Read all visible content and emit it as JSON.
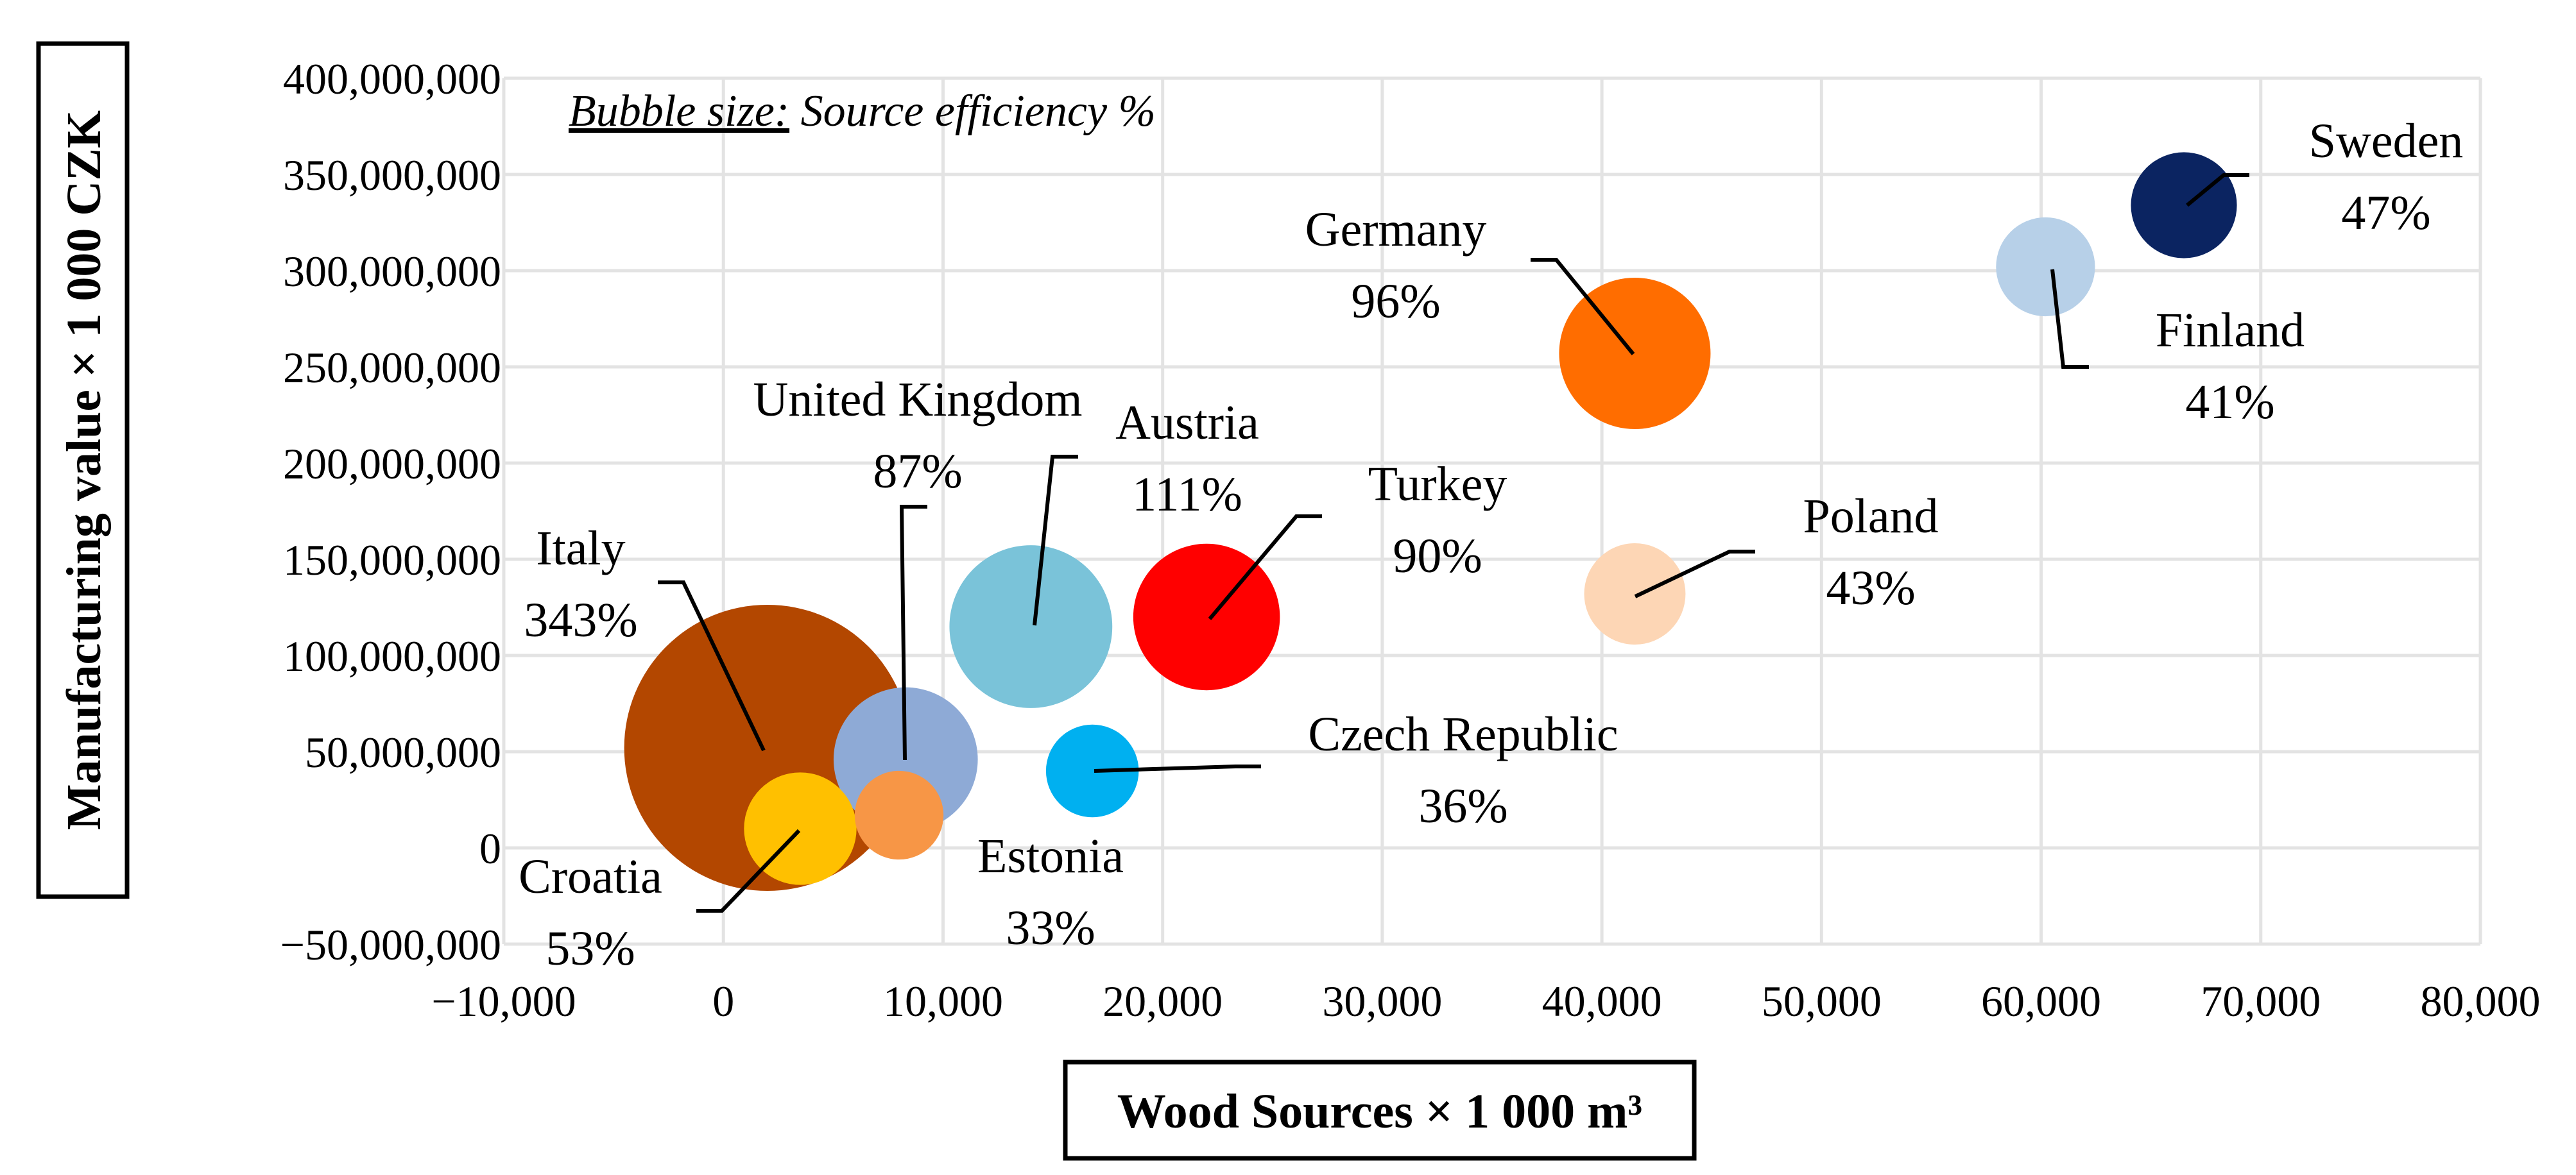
{
  "chart_data": {
    "type": "bubble",
    "title": "",
    "note_prefix": "Bubble size:",
    "note_suffix": " Source efficiency %",
    "xlabel": "Wood Sources × 1 000 m³",
    "ylabel": "Manufacturing value × 1 000 CZK",
    "xlim": [
      -10000,
      80000
    ],
    "ylim": [
      -50000000,
      400000000
    ],
    "x_ticks": [
      -10000,
      0,
      10000,
      20000,
      30000,
      40000,
      50000,
      60000,
      70000,
      80000
    ],
    "x_tick_labels": [
      "−10,000",
      "0",
      "10,000",
      "20,000",
      "30,000",
      "40,000",
      "50,000",
      "60,000",
      "70,000",
      "80,000"
    ],
    "y_ticks": [
      -50000000,
      0,
      50000000,
      100000000,
      150000000,
      200000000,
      250000000,
      300000000,
      350000000,
      400000000
    ],
    "y_tick_labels": [
      "−50,000,000",
      "0",
      "50,000,000",
      "100,000,000",
      "150,000,000",
      "200,000,000",
      "250,000,000",
      "300,000,000",
      "350,000,000",
      "400,000,000"
    ],
    "grid": true,
    "points": [
      {
        "name": "Italy",
        "x": 2000,
        "y": 52000000,
        "efficiency": 343,
        "label": "343%",
        "color": "#b34700"
      },
      {
        "name": "Unlabeled",
        "x": 8000,
        "y": 17000000,
        "efficiency": 33,
        "label": "",
        "color": "#f79646"
      },
      {
        "name": "Croatia",
        "x": 3500,
        "y": 10000000,
        "efficiency": 53,
        "label": "53%",
        "color": "#ffc000"
      },
      {
        "name": "United Kingdom",
        "x": 8300,
        "y": 46000000,
        "efficiency": 87,
        "label": "87%",
        "color": "#8eaad6"
      },
      {
        "name": "Austria",
        "x": 14000,
        "y": 115000000,
        "efficiency": 111,
        "label": "111%",
        "color": "#7ac3d9"
      },
      {
        "name": "Turkey",
        "x": 22000,
        "y": 120000000,
        "efficiency": 90,
        "label": "90%",
        "color": "#ff0000"
      },
      {
        "name": "Estonia",
        "x": 16800,
        "y": 40000000,
        "efficiency": 33,
        "label": "33%",
        "color": "#00b0f0"
      },
      {
        "name": "Germany",
        "x": 41500,
        "y": 257000000,
        "efficiency": 96,
        "label": "96%",
        "color": "#ff6d00"
      },
      {
        "name": "Poland",
        "x": 41500,
        "y": 132000000,
        "efficiency": 43,
        "label": "43%",
        "color": "#fdd6b5"
      },
      {
        "name": "Czech Republic",
        "x": 16800,
        "y": 40000000,
        "efficiency": 36,
        "label": "36%",
        "color": "#00b0f0"
      },
      {
        "name": "Finland",
        "x": 60200,
        "y": 302000000,
        "efficiency": 41,
        "label": "41%",
        "color": "#b7d0e8"
      },
      {
        "name": "Sweden",
        "x": 66500,
        "y": 334000000,
        "efficiency": 47,
        "label": "47%",
        "color": "#0b2461"
      }
    ]
  }
}
